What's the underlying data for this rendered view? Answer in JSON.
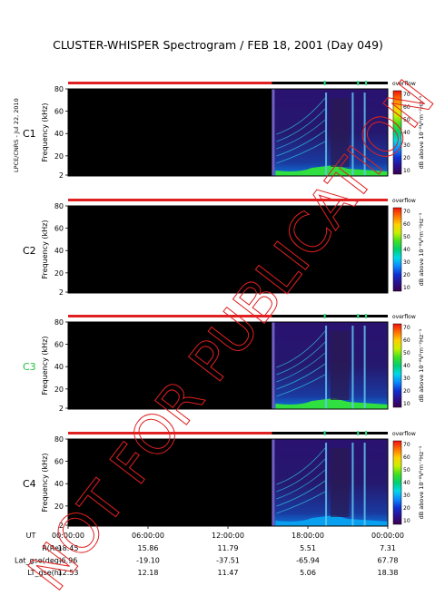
{
  "chart_data": {
    "type": "heatmap",
    "title": "CLUSTER-WHISPER Spectrogram / FEB 18, 2001 (Day 049)",
    "side_label": "LPCE/CNRS - Jul 22, 2010",
    "watermark": "NOT FOR PUBLICATION",
    "ylabel": "Frequency (kHz)",
    "y_ticks": [
      "80",
      "60",
      "40",
      "20",
      "2"
    ],
    "ylim": [
      2,
      80
    ],
    "colorbar": {
      "label": "dB above 10⁻⁸V²m⁻²Hz⁻¹",
      "top_label": "overflow",
      "ticks": [
        "70",
        "60",
        "50",
        "40",
        "30",
        "20",
        "10"
      ],
      "range": [
        10,
        70
      ],
      "colors": [
        "#3a004e",
        "#2a1090",
        "#1030d0",
        "#0a8aff",
        "#00d8e8",
        "#00d070",
        "#40e020",
        "#c8f000",
        "#ffd000",
        "#ff7000",
        "#f01010"
      ]
    },
    "panels": [
      {
        "name": "C1",
        "color": "#000000",
        "data_start_hour": 15.3
      },
      {
        "name": "C2",
        "color": "#000000",
        "data_start_hour": null
      },
      {
        "name": "C3",
        "color": "#20c040",
        "data_start_hour": 15.3
      },
      {
        "name": "C4",
        "color": "#000000",
        "data_start_hour": 15.3
      }
    ],
    "x_axis": {
      "label": "UT",
      "ticks": [
        "00:00:00",
        "06:00:00",
        "12:00:00",
        "18:00:00",
        "00:00:00"
      ],
      "xlim_hours": [
        0,
        24
      ]
    },
    "ephemeris": [
      {
        "label": "R(Re)",
        "values": [
          "18.45",
          "15.86",
          "11.79",
          "5.51",
          "7.31"
        ]
      },
      {
        "label": "Lat_gse(deg)",
        "values": [
          "-6.96",
          "-19.10",
          "-37.51",
          "-65.94",
          "67.78"
        ]
      },
      {
        "label": "LT_gse(h)",
        "values": [
          "12.53",
          "12.18",
          "11.47",
          "5.06",
          "18.38"
        ]
      }
    ]
  }
}
